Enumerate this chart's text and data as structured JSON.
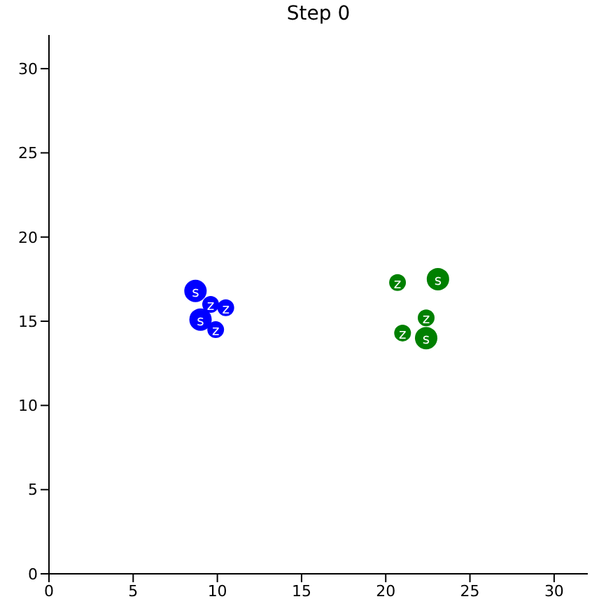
{
  "chart_data": {
    "type": "bubble",
    "title": "Step 0",
    "xlim": [
      0,
      32
    ],
    "ylim": [
      0,
      32
    ],
    "xticks": [
      0,
      5,
      10,
      15,
      20,
      25,
      30
    ],
    "yticks": [
      0,
      5,
      10,
      15,
      20,
      25,
      30
    ],
    "grid": false,
    "legend": false,
    "series": [
      {
        "color": "#0000ff",
        "x": [
          8.7,
          9.0
        ],
        "values": [
          16.8,
          15.1
        ],
        "sizes": [
          1,
          1
        ],
        "value_labels": [
          "s",
          "s"
        ]
      },
      {
        "color": "#0000ff",
        "x": [
          9.6,
          10.5,
          9.9
        ],
        "values": [
          16.0,
          15.8,
          14.5
        ],
        "sizes": [
          0.56,
          0.56,
          0.56
        ],
        "value_labels": [
          "z",
          "z",
          "z"
        ]
      },
      {
        "color": "#008000",
        "x": [
          23.1,
          22.4
        ],
        "values": [
          17.5,
          14.0
        ],
        "sizes": [
          1,
          1
        ],
        "value_labels": [
          "s",
          "s"
        ]
      },
      {
        "color": "#008000",
        "x": [
          20.7,
          22.4,
          21.0
        ],
        "values": [
          17.3,
          15.2,
          14.3
        ],
        "sizes": [
          0.56,
          0.56,
          0.56
        ],
        "value_labels": [
          "z",
          "z",
          "z"
        ]
      }
    ]
  }
}
